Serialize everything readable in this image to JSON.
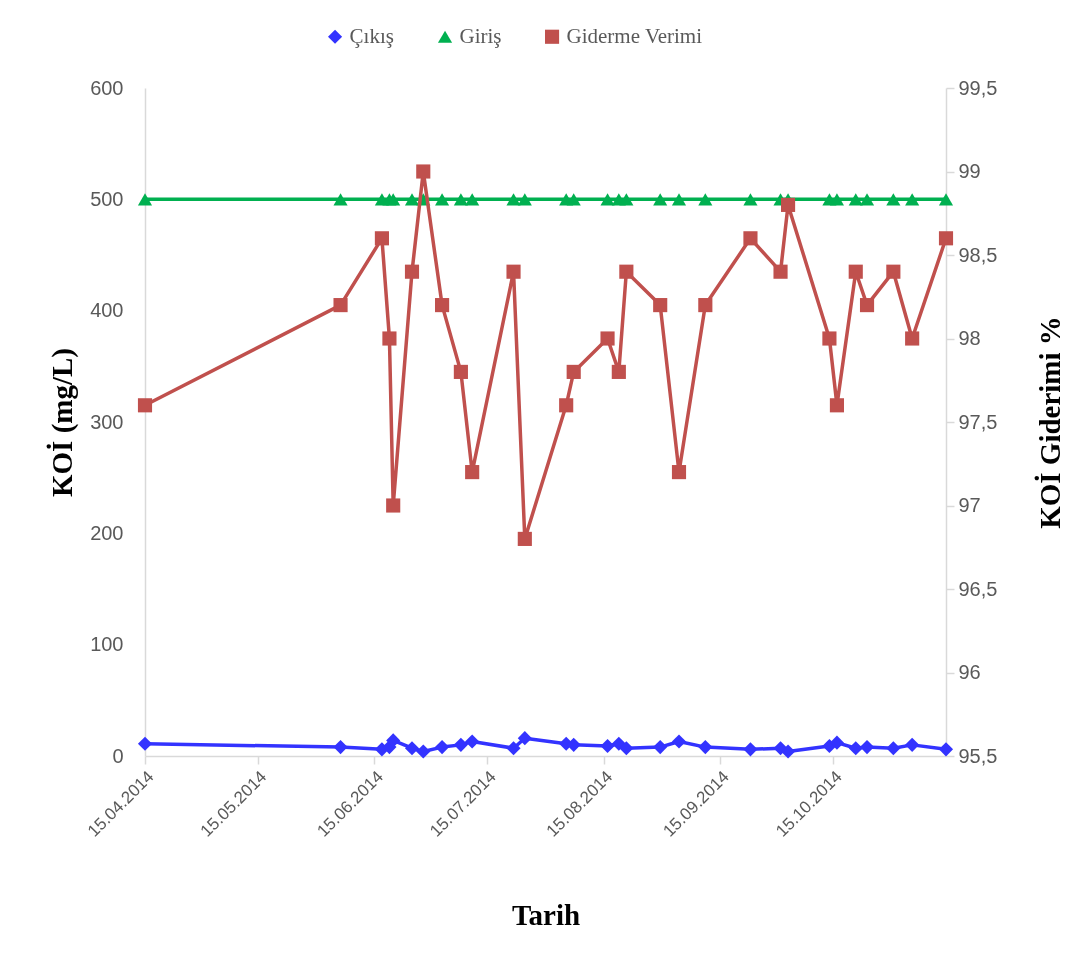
{
  "chart_data": {
    "type": "line",
    "xlabel": "Tarih",
    "ylabel": "KOİ (mg/L)",
    "y2label": "KOİ Giderimi %",
    "x": [
      "2014-04-15",
      "2014-06-06",
      "2014-06-17",
      "2014-06-19",
      "2014-06-20",
      "2014-06-25",
      "2014-06-28",
      "2014-07-03",
      "2014-07-08",
      "2014-07-11",
      "2014-07-22",
      "2014-07-25",
      "2014-08-05",
      "2014-08-07",
      "2014-08-16",
      "2014-08-19",
      "2014-08-21",
      "2014-08-30",
      "2014-09-04",
      "2014-09-11",
      "2014-09-23",
      "2014-10-01",
      "2014-10-03",
      "2014-10-14",
      "2014-10-16",
      "2014-10-21",
      "2014-10-24",
      "2014-10-31",
      "2014-11-05",
      "2014-11-14"
    ],
    "xlim": [
      "2014-04-15",
      "2014-11-14"
    ],
    "xticks": [
      {
        "value": "2014-04-15",
        "label": "15.04.2014"
      },
      {
        "value": "2014-05-15",
        "label": "15.05.2014"
      },
      {
        "value": "2014-06-15",
        "label": "15.06.2014"
      },
      {
        "value": "2014-07-15",
        "label": "15.07.2014"
      },
      {
        "value": "2014-08-15",
        "label": "15.08.2014"
      },
      {
        "value": "2014-09-15",
        "label": "15.09.2014"
      },
      {
        "value": "2014-10-15",
        "label": "15.10.2014"
      }
    ],
    "ylim": [
      0,
      600
    ],
    "yticks": [
      0,
      100,
      200,
      300,
      400,
      500,
      600
    ],
    "y2lim": [
      95.5,
      99.5
    ],
    "y2ticks": [
      {
        "value": 95.5,
        "label": "95,5"
      },
      96,
      {
        "value": 96.5,
        "label": "96,5"
      },
      97,
      {
        "value": 97.5,
        "label": "97,5"
      },
      98,
      {
        "value": 98.5,
        "label": "98,5"
      },
      99,
      {
        "value": 99.5,
        "label": "99,5"
      }
    ],
    "legend": "top",
    "line_style": "solid",
    "series": [
      {
        "name": "Çıkış",
        "color": "#3333ff",
        "marker": "diamond",
        "values": [
          11,
          8,
          6,
          8,
          14,
          7,
          4,
          8,
          10,
          13,
          7,
          16,
          11,
          10,
          9,
          11,
          7,
          8,
          13,
          8,
          6,
          7,
          4,
          9,
          12,
          7,
          8,
          7,
          10,
          6
        ]
      },
      {
        "name": "Giriş",
        "color": "#00b050",
        "marker": "triangle",
        "values": [
          500,
          500,
          500,
          500,
          500,
          500,
          500,
          500,
          500,
          500,
          500,
          500,
          500,
          500,
          500,
          500,
          500,
          500,
          500,
          500,
          500,
          500,
          500,
          500,
          500,
          500,
          500,
          500,
          500,
          500
        ]
      },
      {
        "name": "Giderme Verimi",
        "color": "#c0504d",
        "marker": "square",
        "axis": "y2",
        "values": [
          97.6,
          98.2,
          98.6,
          98.0,
          97.0,
          98.4,
          99.0,
          98.2,
          97.8,
          97.2,
          98.4,
          96.8,
          97.6,
          97.8,
          98.0,
          97.8,
          98.4,
          98.2,
          97.2,
          98.2,
          98.6,
          98.4,
          98.8,
          98.0,
          97.6,
          98.4,
          98.2,
          98.4,
          98.0,
          98.6
        ]
      }
    ]
  }
}
